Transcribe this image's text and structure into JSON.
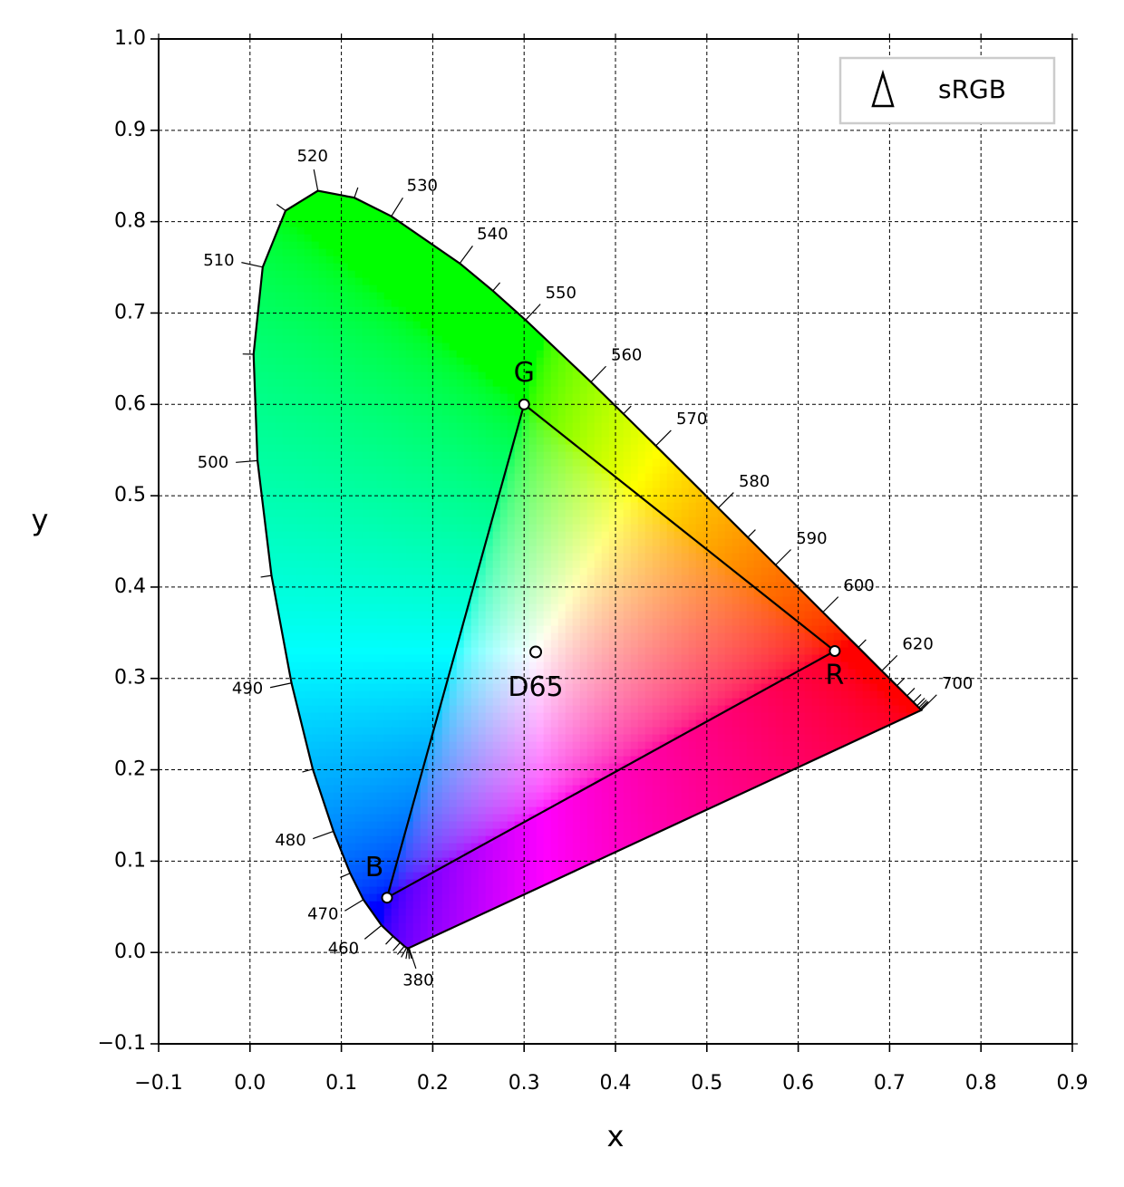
{
  "chart_data": {
    "type": "chromaticity",
    "xlabel": "x",
    "ylabel": "y",
    "xlim": [
      -0.1,
      0.9
    ],
    "ylim": [
      -0.1,
      1.0
    ],
    "xticks": [
      {
        "value": -0.1,
        "label": "−0.1"
      },
      {
        "value": 0,
        "label": "0.0"
      },
      0.1,
      0.2,
      0.3,
      0.4,
      0.5,
      0.6,
      0.7,
      0.8,
      0.9
    ],
    "yticks": [
      {
        "value": -0.1,
        "label": "−0.1"
      },
      {
        "value": 0,
        "label": "0.0"
      },
      0.1,
      0.2,
      0.3,
      0.4,
      0.5,
      0.6,
      0.7,
      0.8,
      0.9,
      {
        "value": 1.0,
        "label": "1.0"
      }
    ],
    "grid": true,
    "color": "#000000",
    "locus": {
      "wavelengths": [
        380,
        390,
        400,
        410,
        420,
        430,
        440,
        450,
        460,
        470,
        475,
        480,
        485,
        490,
        495,
        500,
        505,
        510,
        515,
        520,
        525,
        530,
        540,
        545,
        550,
        560,
        565,
        570,
        580,
        585,
        590,
        600,
        610,
        620,
        630,
        640,
        650,
        660,
        670,
        680,
        690,
        700
      ],
      "x": [
        0.1741,
        0.1738,
        0.1733,
        0.1726,
        0.1714,
        0.1689,
        0.1644,
        0.1566,
        0.144,
        0.1241,
        0.1096,
        0.0913,
        0.0687,
        0.0454,
        0.0235,
        0.0082,
        0.0039,
        0.0139,
        0.0389,
        0.0743,
        0.1142,
        0.1547,
        0.2296,
        0.2658,
        0.3016,
        0.3731,
        0.4087,
        0.4441,
        0.5125,
        0.5448,
        0.5752,
        0.627,
        0.6658,
        0.6915,
        0.7079,
        0.719,
        0.726,
        0.73,
        0.732,
        0.7334,
        0.7344,
        0.7347
      ],
      "y": [
        0.005,
        0.0049,
        0.0048,
        0.0048,
        0.0051,
        0.0069,
        0.0109,
        0.0177,
        0.0297,
        0.0578,
        0.0868,
        0.1327,
        0.2007,
        0.295,
        0.4127,
        0.5384,
        0.6548,
        0.7502,
        0.812,
        0.8338,
        0.8262,
        0.8059,
        0.7543,
        0.7243,
        0.6923,
        0.6245,
        0.5896,
        0.5547,
        0.4866,
        0.4544,
        0.4242,
        0.3725,
        0.334,
        0.3083,
        0.292,
        0.2809,
        0.274,
        0.27,
        0.268,
        0.2666,
        0.2656,
        0.2653
      ],
      "labels": [
        380,
        null,
        null,
        null,
        null,
        null,
        null,
        null,
        460,
        470,
        null,
        480,
        null,
        490,
        null,
        500,
        null,
        510,
        null,
        520,
        null,
        530,
        540,
        null,
        550,
        560,
        null,
        570,
        580,
        null,
        590,
        600,
        null,
        620,
        null,
        null,
        null,
        null,
        null,
        null,
        null,
        700
      ]
    },
    "gamut": {
      "name": "sRGB",
      "primaries": [
        {
          "label": "R",
          "x": 0.64,
          "y": 0.33
        },
        {
          "label": "G",
          "x": 0.3,
          "y": 0.6
        },
        {
          "label": "B",
          "x": 0.15,
          "y": 0.06
        }
      ],
      "white": {
        "label": "D65",
        "x": 0.3127,
        "y": 0.329
      }
    },
    "legend": "upper right"
  }
}
